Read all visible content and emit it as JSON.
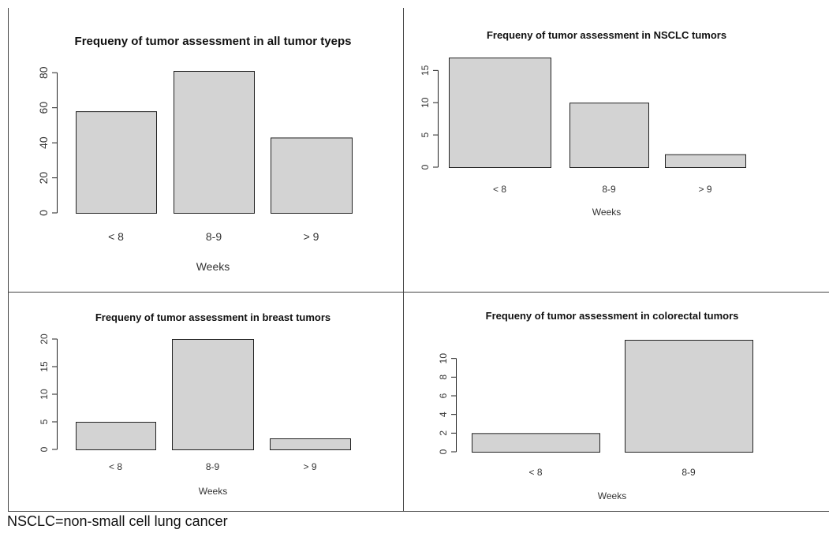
{
  "chart_data": [
    {
      "type": "bar",
      "title": "Frequeny of tumor assessment in all tumor tyeps",
      "xlabel": "Weeks",
      "ylabel": "",
      "categories": [
        "< 8",
        "8-9",
        "> 9"
      ],
      "values": [
        58,
        81,
        43
      ],
      "ylim": [
        0,
        81
      ],
      "yticks": [
        0,
        20,
        40,
        60,
        80
      ],
      "bar_color": "#d3d3d3",
      "grid": false
    },
    {
      "type": "bar",
      "title": "Frequeny of tumor assessment in NSCLC tumors",
      "xlabel": "Weeks",
      "ylabel": "",
      "categories": [
        "< 8",
        "8-9",
        "> 9"
      ],
      "values": [
        17,
        10,
        2
      ],
      "ylim": [
        0,
        17
      ],
      "yticks": [
        0,
        5,
        10,
        15
      ],
      "bar_color": "#d3d3d3",
      "grid": false
    },
    {
      "type": "bar",
      "title": "Frequeny of tumor assessment in breast tumors",
      "xlabel": "Weeks",
      "ylabel": "",
      "categories": [
        "< 8",
        "8-9",
        "> 9"
      ],
      "values": [
        5,
        20,
        2
      ],
      "ylim": [
        0,
        20
      ],
      "yticks": [
        0,
        5,
        10,
        15,
        20
      ],
      "bar_color": "#d3d3d3",
      "grid": false
    },
    {
      "type": "bar",
      "title": "Frequeny of tumor assessment in colorectal tumors",
      "xlabel": "Weeks",
      "ylabel": "",
      "categories": [
        "< 8",
        "8-9"
      ],
      "values": [
        2,
        12
      ],
      "ylim": [
        0,
        12
      ],
      "yticks": [
        0,
        2,
        4,
        6,
        8,
        10
      ],
      "bar_color": "#d3d3d3",
      "grid": false
    }
  ],
  "footnote": "NSCLC=non-small cell lung cancer"
}
